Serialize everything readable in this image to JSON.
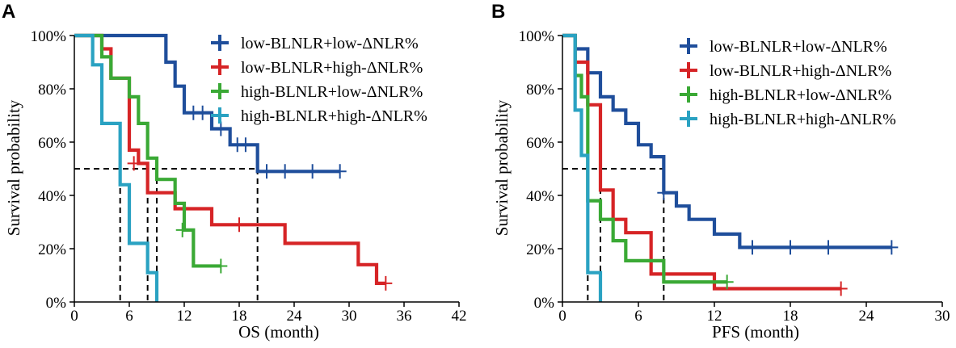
{
  "chart_data": [
    {
      "type": "line",
      "panel": "A",
      "xlabel": "OS (month)",
      "ylabel": "Survival probability",
      "xlim": [
        0,
        42
      ],
      "ylim": [
        0,
        1
      ],
      "xticks": [
        "0",
        "6",
        "12",
        "18",
        "24",
        "30",
        "36",
        "42"
      ],
      "yticks": [
        "0%",
        "20%",
        "40%",
        "60%",
        "80%",
        "100%"
      ],
      "legend_position": "top-right",
      "median_lines": [
        5,
        8,
        9,
        20
      ],
      "series": [
        {
          "name": "low-BLNLR+low-ΔNLR%",
          "color": "#1f4e9b",
          "steps": [
            [
              0,
              1.0
            ],
            [
              10,
              0.9
            ],
            [
              11,
              0.81
            ],
            [
              12,
              0.71
            ],
            [
              15,
              0.65
            ],
            [
              17,
              0.59
            ],
            [
              20,
              0.49
            ],
            [
              29,
              0.49
            ]
          ],
          "censor": [
            [
              13,
              0.71
            ],
            [
              14,
              0.71
            ],
            [
              16,
              0.65
            ],
            [
              17.8,
              0.59
            ],
            [
              18.7,
              0.59
            ],
            [
              21,
              0.49
            ],
            [
              23,
              0.49
            ],
            [
              26,
              0.49
            ],
            [
              29,
              0.49
            ]
          ]
        },
        {
          "name": "low-BLNLR+high-ΔNLR%",
          "color": "#d62426",
          "steps": [
            [
              0,
              1.0
            ],
            [
              3,
              0.95
            ],
            [
              4,
              0.84
            ],
            [
              6,
              0.57
            ],
            [
              7,
              0.52
            ],
            [
              8,
              0.41
            ],
            [
              11,
              0.35
            ],
            [
              15,
              0.29
            ],
            [
              23,
              0.22
            ],
            [
              31,
              0.14
            ],
            [
              33,
              0.07
            ],
            [
              34,
              0.07
            ]
          ],
          "censor": [
            [
              6.5,
              0.52
            ],
            [
              18,
              0.29
            ],
            [
              34,
              0.07
            ]
          ]
        },
        {
          "name": "high-BLNLR+low-ΔNLR%",
          "color": "#3aa935",
          "steps": [
            [
              0,
              1.0
            ],
            [
              3,
              0.92
            ],
            [
              4,
              0.84
            ],
            [
              6,
              0.77
            ],
            [
              7,
              0.67
            ],
            [
              8,
              0.54
            ],
            [
              9,
              0.46
            ],
            [
              11,
              0.37
            ],
            [
              12,
              0.27
            ],
            [
              13,
              0.135
            ],
            [
              16,
              0.135
            ]
          ],
          "censor": [
            [
              11.8,
              0.27
            ],
            [
              16,
              0.135
            ]
          ]
        },
        {
          "name": "high-BLNLR+high-ΔNLR%",
          "color": "#2aa2c2",
          "steps": [
            [
              0,
              1.0
            ],
            [
              2,
              0.89
            ],
            [
              3,
              0.67
            ],
            [
              5,
              0.44
            ],
            [
              6,
              0.22
            ],
            [
              8,
              0.11
            ],
            [
              9,
              0.0
            ]
          ],
          "censor": []
        }
      ]
    },
    {
      "type": "line",
      "panel": "B",
      "xlabel": "PFS (month)",
      "ylabel": "Survival probability",
      "xlim": [
        0,
        30
      ],
      "ylim": [
        0,
        1
      ],
      "xticks": [
        "0",
        "6",
        "12",
        "18",
        "24",
        "30"
      ],
      "yticks": [
        "0%",
        "20%",
        "40%",
        "60%",
        "80%",
        "100%"
      ],
      "legend_position": "top-right",
      "median_lines": [
        2,
        3,
        8
      ],
      "series": [
        {
          "name": "low-BLNLR+low-ΔNLR%",
          "color": "#1f4e9b",
          "steps": [
            [
              0,
              1.0
            ],
            [
              1,
              0.95
            ],
            [
              2,
              0.86
            ],
            [
              3,
              0.77
            ],
            [
              4,
              0.72
            ],
            [
              5,
              0.67
            ],
            [
              6,
              0.59
            ],
            [
              7,
              0.545
            ],
            [
              8,
              0.41
            ],
            [
              9,
              0.36
            ],
            [
              10,
              0.31
            ],
            [
              12,
              0.255
            ],
            [
              14,
              0.205
            ],
            [
              26,
              0.205
            ]
          ],
          "censor": [
            [
              8,
              0.41
            ],
            [
              15,
              0.205
            ],
            [
              18,
              0.205
            ],
            [
              21,
              0.205
            ],
            [
              26,
              0.205
            ]
          ]
        },
        {
          "name": "low-BLNLR+high-ΔNLR%",
          "color": "#d62426",
          "steps": [
            [
              0,
              1.0
            ],
            [
              1,
              0.9
            ],
            [
              2,
              0.74
            ],
            [
              3,
              0.42
            ],
            [
              4,
              0.31
            ],
            [
              5,
              0.26
            ],
            [
              7,
              0.105
            ],
            [
              12,
              0.05
            ],
            [
              22,
              0.05
            ]
          ],
          "censor": [
            [
              22,
              0.05
            ]
          ]
        },
        {
          "name": "high-BLNLR+low-ΔNLR%",
          "color": "#3aa935",
          "steps": [
            [
              0,
              1.0
            ],
            [
              1,
              0.85
            ],
            [
              1.5,
              0.77
            ],
            [
              2,
              0.38
            ],
            [
              3,
              0.31
            ],
            [
              4,
              0.23
            ],
            [
              5,
              0.155
            ],
            [
              8,
              0.075
            ],
            [
              13,
              0.075
            ]
          ],
          "censor": [
            [
              13,
              0.075
            ]
          ]
        },
        {
          "name": "high-BLNLR+high-ΔNLR%",
          "color": "#2aa2c2",
          "steps": [
            [
              0,
              1.0
            ],
            [
              1,
              0.72
            ],
            [
              1.5,
              0.55
            ],
            [
              2,
              0.11
            ],
            [
              3,
              0.0
            ]
          ],
          "censor": []
        }
      ]
    }
  ]
}
